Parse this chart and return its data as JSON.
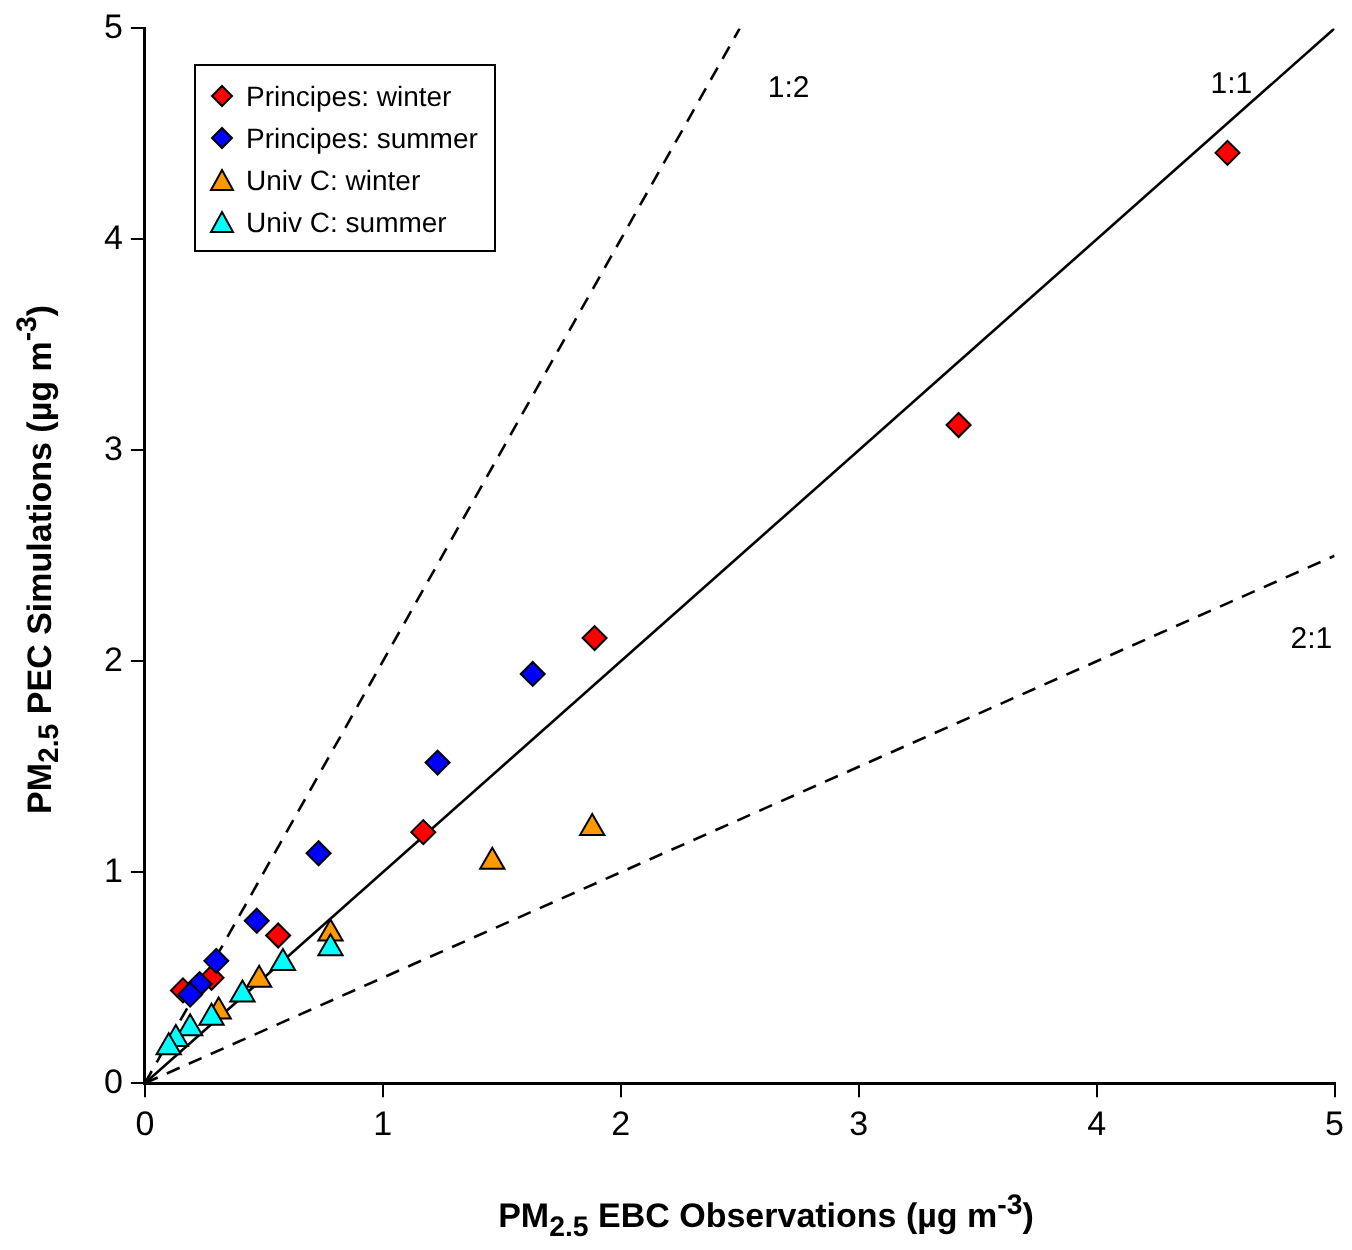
{
  "chart_data": {
    "type": "scatter",
    "xlabel": "PM$_{2.5}$ EBC Observations (µg m$^{-3}$)",
    "ylabel": "PM$_{2.5}$ PEC Simulations (µg m$^{-3}$)",
    "xlim": [
      0,
      5
    ],
    "ylim": [
      0,
      5
    ],
    "xticks": [
      0,
      1,
      2,
      3,
      4,
      5
    ],
    "yticks": [
      0,
      1,
      2,
      3,
      4,
      5
    ],
    "grid": false,
    "legend": "top left",
    "series": [
      {
        "name": "Principes: winter",
        "color": "#ff0000",
        "marker": "diamond",
        "x": [
          4.55,
          3.42,
          1.89,
          1.17,
          0.56,
          0.28,
          0.16
        ],
        "values": [
          4.41,
          3.12,
          2.11,
          1.19,
          0.7,
          0.5,
          0.44
        ]
      },
      {
        "name": "Principes: summer",
        "color": "#0000ff",
        "marker": "diamond",
        "x": [
          1.63,
          1.23,
          0.73,
          0.47,
          0.3,
          0.23,
          0.19
        ],
        "values": [
          1.94,
          1.52,
          1.09,
          0.77,
          0.58,
          0.47,
          0.42
        ]
      },
      {
        "name": "Univ C: winter",
        "color": "#ff9900",
        "marker": "triangle",
        "x": [
          1.88,
          1.46,
          0.78,
          0.48,
          0.31
        ],
        "values": [
          1.21,
          1.05,
          0.71,
          0.49,
          0.34
        ]
      },
      {
        "name": "Univ C: summer",
        "color": "#00ffff",
        "marker": "triangle",
        "x": [
          0.78,
          0.58,
          0.41,
          0.28,
          0.19,
          0.13,
          0.1
        ],
        "values": [
          0.64,
          0.57,
          0.42,
          0.31,
          0.26,
          0.21,
          0.17
        ]
      },
      {
        "name": "1:2",
        "type": "line",
        "color": "#000000",
        "line_style": "dashed",
        "marker": "none",
        "x": [
          0,
          2.5
        ],
        "values": [
          0,
          5
        ]
      },
      {
        "name": "1:1",
        "type": "line",
        "color": "#000000",
        "line_style": "solid",
        "marker": "none",
        "x": [
          0,
          5
        ],
        "values": [
          0,
          5
        ]
      },
      {
        "name": "2:1",
        "type": "line",
        "color": "#000000",
        "line_style": "dashed",
        "marker": "none",
        "x": [
          0,
          5
        ],
        "values": [
          0,
          2.5
        ]
      }
    ]
  }
}
